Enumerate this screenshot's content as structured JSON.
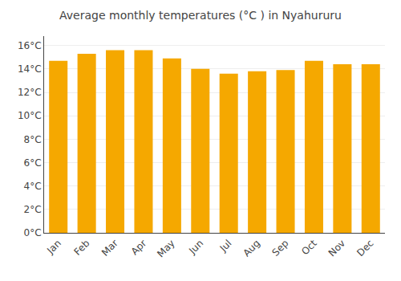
{
  "chart_data": {
    "type": "bar",
    "title": "Average monthly temperatures (°C ) in Nyahururu",
    "categories": [
      "Jan",
      "Feb",
      "Mar",
      "Apr",
      "May",
      "Jun",
      "Jul",
      "Aug",
      "Sep",
      "Oct",
      "Nov",
      "Dec"
    ],
    "values": [
      14.7,
      15.3,
      15.6,
      15.6,
      14.9,
      14.0,
      13.6,
      13.8,
      13.9,
      14.7,
      14.4,
      14.4
    ],
    "color": "#F5A800",
    "ylim": [
      0,
      16.8
    ],
    "yticks": [
      {
        "value": 0,
        "label": "0°C"
      },
      {
        "value": 2,
        "label": "2°C"
      },
      {
        "value": 4,
        "label": "4°C"
      },
      {
        "value": 6,
        "label": "6°C"
      },
      {
        "value": 8,
        "label": "8°C"
      },
      {
        "value": 10,
        "label": "10°C"
      },
      {
        "value": 12,
        "label": "12°C"
      },
      {
        "value": 14,
        "label": "14°C"
      },
      {
        "value": 16,
        "label": "16°C"
      }
    ],
    "grid": true
  }
}
